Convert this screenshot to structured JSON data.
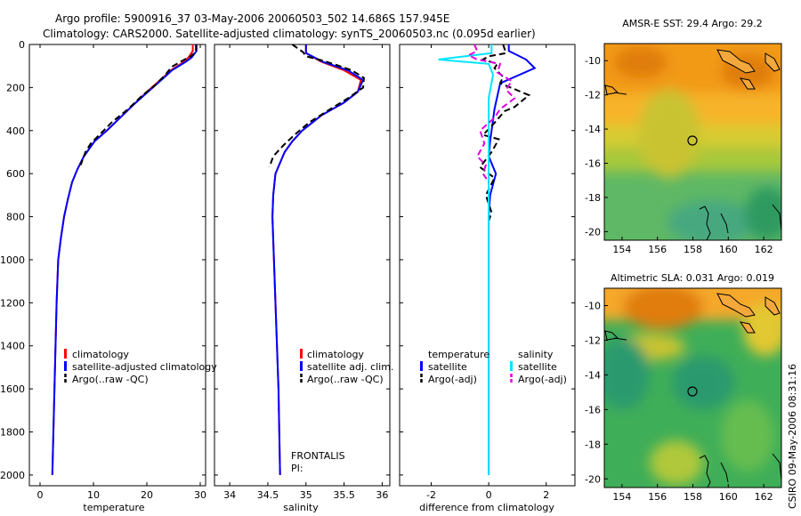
{
  "header": {
    "line1": "Argo profile:  5900916_37 03-May-2006 20060503_502 14.686S 157.945E",
    "line2": "Climatology: CARS2000. Satellite-adjusted climatology: synTS_20060503.nc (0.095d earlier)"
  },
  "colors": {
    "climatology": "#ff0000",
    "satellite": "#0000ff",
    "argo": "#000000",
    "salinity_sat": "#00e5ff",
    "salinity_argo": "#e000e0"
  },
  "chart_data": [
    {
      "type": "line",
      "id": "temperature",
      "xlabel": "temperature",
      "ylabel": "",
      "xlim": [
        -2,
        31
      ],
      "ylim": [
        2050,
        0
      ],
      "xticks": [
        0,
        10,
        20,
        30
      ],
      "yticks": [
        0,
        200,
        400,
        600,
        800,
        1000,
        1200,
        1400,
        1600,
        1800,
        2000
      ],
      "series": [
        {
          "name": "climatology",
          "color": "#ff0000",
          "dash": "",
          "points": [
            [
              28.6,
              0
            ],
            [
              28.6,
              30
            ],
            [
              27.8,
              60
            ],
            [
              27,
              80
            ],
            [
              24.5,
              120
            ],
            [
              23.2,
              150
            ],
            [
              20,
              220
            ],
            [
              17.5,
              280
            ],
            [
              15,
              340
            ],
            [
              12.5,
              400
            ],
            [
              10.2,
              450
            ],
            [
              8.2,
              520
            ],
            [
              7,
              580
            ],
            [
              6,
              640
            ],
            [
              5.2,
              720
            ],
            [
              4.5,
              800
            ],
            [
              3.9,
              900
            ],
            [
              3.4,
              1000
            ],
            [
              3.1,
              1200
            ],
            [
              2.9,
              1400
            ],
            [
              2.7,
              1600
            ],
            [
              2.5,
              1800
            ],
            [
              2.3,
              2000
            ]
          ]
        },
        {
          "name": "satellite-adjusted climatology",
          "color": "#0000ff",
          "dash": "",
          "points": [
            [
              29.3,
              0
            ],
            [
              29.3,
              30
            ],
            [
              28.4,
              60
            ],
            [
              27.3,
              80
            ],
            [
              24.7,
              120
            ],
            [
              23.4,
              150
            ],
            [
              20.2,
              220
            ],
            [
              17.5,
              280
            ],
            [
              15,
              340
            ],
            [
              12.5,
              400
            ],
            [
              10.2,
              450
            ],
            [
              8.2,
              520
            ],
            [
              7,
              580
            ],
            [
              6,
              640
            ],
            [
              5.2,
              720
            ],
            [
              4.5,
              800
            ],
            [
              3.9,
              900
            ],
            [
              3.4,
              1000
            ],
            [
              3.1,
              1200
            ],
            [
              2.9,
              1400
            ],
            [
              2.7,
              1600
            ],
            [
              2.5,
              1800
            ],
            [
              2.3,
              2000
            ]
          ]
        },
        {
          "name": "Argo(..raw -QC)",
          "color": "#000000",
          "dash": "7,4",
          "points": [
            [
              29.2,
              0
            ],
            [
              29.2,
              35
            ],
            [
              28.2,
              55
            ],
            [
              26.3,
              80
            ],
            [
              24.6,
              105
            ],
            [
              23.5,
              140
            ],
            [
              21.5,
              190
            ],
            [
              19,
              240
            ],
            [
              16.5,
              300
            ],
            [
              13.5,
              360
            ],
            [
              11.5,
              410
            ],
            [
              9.5,
              460
            ],
            [
              8.5,
              500
            ],
            [
              7.6,
              560
            ]
          ]
        }
      ],
      "legend": [
        "climatology",
        "satellite-adjusted climatology",
        "Argo(..raw -QC)"
      ]
    },
    {
      "type": "line",
      "id": "salinity",
      "xlabel": "salinity",
      "ylabel": "",
      "xlim": [
        33.8,
        36.1
      ],
      "ylim": [
        2050,
        0
      ],
      "xticks": [
        34,
        34.5,
        35,
        35.5,
        36
      ],
      "yticks": [
        0,
        200,
        400,
        600,
        800,
        1000,
        1200,
        1400,
        1600,
        1800,
        2000
      ],
      "series": [
        {
          "name": "climatology",
          "color": "#ff0000",
          "dash": "",
          "points": [
            [
              35,
              0
            ],
            [
              35,
              40
            ],
            [
              35.2,
              80
            ],
            [
              35.5,
              120
            ],
            [
              35.72,
              165
            ],
            [
              35.68,
              220
            ],
            [
              35.5,
              270
            ],
            [
              35.2,
              330
            ],
            [
              34.95,
              400
            ],
            [
              34.82,
              450
            ],
            [
              34.72,
              500
            ],
            [
              34.6,
              600
            ],
            [
              34.57,
              700
            ],
            [
              34.56,
              800
            ],
            [
              34.58,
              1000
            ],
            [
              34.6,
              1200
            ],
            [
              34.62,
              1400
            ],
            [
              34.64,
              1600
            ],
            [
              34.65,
              1800
            ],
            [
              34.66,
              2000
            ]
          ]
        },
        {
          "name": "satellite adj. clim.",
          "color": "#0000ff",
          "dash": "",
          "points": [
            [
              35,
              0
            ],
            [
              35,
              40
            ],
            [
              35.22,
              80
            ],
            [
              35.55,
              120
            ],
            [
              35.75,
              165
            ],
            [
              35.68,
              220
            ],
            [
              35.5,
              270
            ],
            [
              35.2,
              330
            ],
            [
              34.95,
              400
            ],
            [
              34.82,
              450
            ],
            [
              34.72,
              500
            ],
            [
              34.6,
              600
            ],
            [
              34.57,
              700
            ],
            [
              34.56,
              800
            ],
            [
              34.58,
              1000
            ],
            [
              34.6,
              1200
            ],
            [
              34.62,
              1400
            ],
            [
              34.64,
              1600
            ],
            [
              34.65,
              1800
            ],
            [
              34.66,
              2000
            ]
          ]
        },
        {
          "name": "Argo(..raw -QC)",
          "color": "#000000",
          "dash": "7,4",
          "points": [
            [
              34.82,
              0
            ],
            [
              34.96,
              35
            ],
            [
              35,
              55
            ],
            [
              35.22,
              75
            ],
            [
              35.4,
              95
            ],
            [
              35.6,
              120
            ],
            [
              35.76,
              155
            ],
            [
              35.75,
              200
            ],
            [
              35.55,
              250
            ],
            [
              35.32,
              300
            ],
            [
              35.05,
              360
            ],
            [
              34.85,
              420
            ],
            [
              34.7,
              470
            ],
            [
              34.57,
              520
            ],
            [
              34.52,
              570
            ]
          ]
        }
      ],
      "legend": [
        "climatology",
        "satellite adj. clim.",
        "Argo(..raw -QC)"
      ],
      "annotations": [
        "FRONTALIS",
        "PI:"
      ]
    },
    {
      "type": "line",
      "id": "difference",
      "xlabel": "difference from climatology",
      "ylabel": "",
      "xlim": [
        -3.1,
        3
      ],
      "ylim": [
        2050,
        0
      ],
      "xticks": [
        -2,
        0,
        2
      ],
      "yticks": [
        0,
        200,
        400,
        600,
        800,
        1000,
        1200,
        1400,
        1600,
        1800,
        2000
      ],
      "series": [
        {
          "name": "temperature satellite",
          "color": "#0000ff",
          "dash": "",
          "points": [
            [
              0.7,
              0
            ],
            [
              0.7,
              30
            ],
            [
              1.3,
              70
            ],
            [
              1.6,
              110
            ],
            [
              0.4,
              180
            ],
            [
              0.2,
              300
            ],
            [
              0.05,
              450
            ],
            [
              0,
              520
            ],
            [
              0.25,
              600
            ],
            [
              0.05,
              700
            ],
            [
              0,
              800
            ],
            [
              0,
              1200
            ],
            [
              0,
              2000
            ]
          ]
        },
        {
          "name": "temperature Argo(-adj)",
          "color": "#000000",
          "dash": "7,4",
          "points": [
            [
              0.5,
              0
            ],
            [
              0.6,
              40
            ],
            [
              0,
              55
            ],
            [
              -0.2,
              70
            ],
            [
              0.3,
              90
            ],
            [
              0.2,
              110
            ],
            [
              0.5,
              150
            ],
            [
              0.4,
              180
            ],
            [
              1.4,
              235
            ],
            [
              0.9,
              290
            ],
            [
              0.55,
              310
            ],
            [
              0.1,
              380
            ],
            [
              -0.2,
              420
            ],
            [
              0.35,
              440
            ],
            [
              0.1,
              500
            ],
            [
              -0.3,
              570
            ],
            [
              0.2,
              620
            ],
            [
              -0.1,
              700
            ],
            [
              0.1,
              780
            ],
            [
              0,
              820
            ]
          ]
        },
        {
          "name": "salinity satellite",
          "color": "#00e5ff",
          "dash": "",
          "points": [
            [
              0.1,
              0
            ],
            [
              0.1,
              40
            ],
            [
              -1.75,
              70
            ],
            [
              0,
              90
            ],
            [
              0.15,
              140
            ],
            [
              0,
              250
            ],
            [
              0,
              800
            ],
            [
              0,
              1200
            ],
            [
              0,
              1600
            ],
            [
              0,
              2000
            ]
          ]
        },
        {
          "name": "salinity Argo(-adj)",
          "color": "#e000e0",
          "dash": "7,4",
          "points": [
            [
              -0.5,
              0
            ],
            [
              -0.4,
              30
            ],
            [
              -0.7,
              50
            ],
            [
              -0.4,
              70
            ],
            [
              0.4,
              90
            ],
            [
              0.3,
              130
            ],
            [
              0.8,
              170
            ],
            [
              0.6,
              210
            ],
            [
              0.9,
              250
            ],
            [
              0.4,
              300
            ],
            [
              0.2,
              340
            ],
            [
              -0.3,
              400
            ],
            [
              -0.15,
              460
            ],
            [
              -0.4,
              520
            ],
            [
              -0.1,
              560
            ],
            [
              -0.2,
              600
            ],
            [
              0,
              640
            ]
          ]
        }
      ],
      "legend_groups": [
        {
          "title": "temperature",
          "items": [
            "satellite",
            "Argo(-adj)"
          ]
        },
        {
          "title": "salinity",
          "items": [
            "satellite",
            "Argo(-adj)"
          ]
        }
      ]
    },
    {
      "type": "heatmap",
      "id": "sst_map",
      "title": "AMSR-E SST: 29.4 Argo: 29.2",
      "xlim": [
        153,
        163
      ],
      "ylim": [
        -20.5,
        -9
      ],
      "xticks": [
        154,
        156,
        158,
        160,
        162
      ],
      "yticks": [
        -10,
        -12,
        -14,
        -16,
        -18,
        -20
      ],
      "marker": [
        157.945,
        -14.686
      ]
    },
    {
      "type": "heatmap",
      "id": "sla_map",
      "title": "Altimetric SLA: 0.031 Argo: 0.019",
      "xlim": [
        153,
        163
      ],
      "ylim": [
        -20.5,
        -9
      ],
      "xticks": [
        154,
        156,
        158,
        160,
        162
      ],
      "yticks": [
        -10,
        -12,
        -14,
        -16,
        -18,
        -20
      ],
      "marker": [
        157.945,
        -14.686
      ]
    }
  ],
  "footer": {
    "credit": "CSIRO 09-May-2006 08:31:16"
  }
}
